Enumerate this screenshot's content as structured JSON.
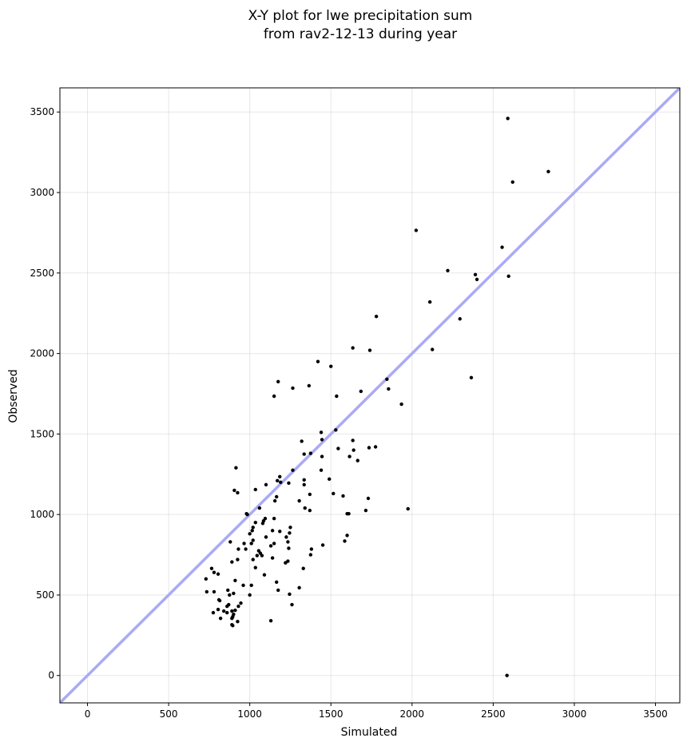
{
  "chart_data": {
    "type": "scatter",
    "title": [
      "X-Y plot for lwe precipitation sum",
      "from rav2-12-13 during year"
    ],
    "xlabel": "Simulated",
    "ylabel": "Observed",
    "xlim": [
      -170,
      3650
    ],
    "ylim": [
      -170,
      3650
    ],
    "xticks": [
      0,
      500,
      1000,
      1500,
      2000,
      2500,
      3000,
      3500
    ],
    "yticks": [
      0,
      500,
      1000,
      1500,
      2000,
      2500,
      3000,
      3500
    ],
    "grid": true,
    "reference_line": {
      "kind": "1:1",
      "color": "#aaaaf5"
    },
    "point_color": "#000000",
    "points": [
      [
        2590,
        3460
      ],
      [
        2840,
        3130
      ],
      [
        2620,
        3065
      ],
      [
        2025,
        2765
      ],
      [
        2555,
        2660
      ],
      [
        2220,
        2515
      ],
      [
        2390,
        2490
      ],
      [
        2400,
        2460
      ],
      [
        2595,
        2480
      ],
      [
        2110,
        2320
      ],
      [
        2295,
        2215
      ],
      [
        1780,
        2230
      ],
      [
        1635,
        2035
      ],
      [
        1740,
        2020
      ],
      [
        2125,
        2025
      ],
      [
        1420,
        1950
      ],
      [
        1500,
        1920
      ],
      [
        2365,
        1850
      ],
      [
        1175,
        1825
      ],
      [
        1845,
        1840
      ],
      [
        1365,
        1800
      ],
      [
        1265,
        1785
      ],
      [
        1855,
        1780
      ],
      [
        1685,
        1765
      ],
      [
        1150,
        1735
      ],
      [
        1535,
        1735
      ],
      [
        1935,
        1685
      ],
      [
        1530,
        1525
      ],
      [
        1440,
        1510
      ],
      [
        1445,
        1465
      ],
      [
        1320,
        1455
      ],
      [
        1635,
        1460
      ],
      [
        1545,
        1410
      ],
      [
        1640,
        1400
      ],
      [
        1735,
        1415
      ],
      [
        1775,
        1420
      ],
      [
        1335,
        1375
      ],
      [
        1375,
        1380
      ],
      [
        1615,
        1360
      ],
      [
        1445,
        1360
      ],
      [
        1665,
        1335
      ],
      [
        915,
        1290
      ],
      [
        1265,
        1275
      ],
      [
        1440,
        1275
      ],
      [
        1185,
        1235
      ],
      [
        1170,
        1210
      ],
      [
        1190,
        1200
      ],
      [
        1335,
        1215
      ],
      [
        1490,
        1220
      ],
      [
        1240,
        1195
      ],
      [
        1335,
        1185
      ],
      [
        1100,
        1185
      ],
      [
        1035,
        1155
      ],
      [
        905,
        1150
      ],
      [
        925,
        1135
      ],
      [
        1515,
        1130
      ],
      [
        1370,
        1125
      ],
      [
        1575,
        1115
      ],
      [
        1165,
        1110
      ],
      [
        1730,
        1100
      ],
      [
        1305,
        1085
      ],
      [
        1155,
        1085
      ],
      [
        1340,
        1040
      ],
      [
        1060,
        1040
      ],
      [
        1370,
        1025
      ],
      [
        1715,
        1025
      ],
      [
        1975,
        1035
      ],
      [
        980,
        1005
      ],
      [
        985,
        1000
      ],
      [
        1600,
        1005
      ],
      [
        1610,
        1005
      ],
      [
        1095,
        975
      ],
      [
        1150,
        975
      ],
      [
        1085,
        960
      ],
      [
        1080,
        945
      ],
      [
        1035,
        950
      ],
      [
        1020,
        920
      ],
      [
        1250,
        920
      ],
      [
        1015,
        900
      ],
      [
        1140,
        900
      ],
      [
        1185,
        895
      ],
      [
        1245,
        885
      ],
      [
        1000,
        880
      ],
      [
        1600,
        870
      ],
      [
        1225,
        860
      ],
      [
        1100,
        860
      ],
      [
        1020,
        840
      ],
      [
        1235,
        830
      ],
      [
        1585,
        835
      ],
      [
        1010,
        820
      ],
      [
        880,
        830
      ],
      [
        965,
        820
      ],
      [
        1150,
        820
      ],
      [
        1130,
        805
      ],
      [
        1450,
        810
      ],
      [
        1240,
        790
      ],
      [
        1380,
        785
      ],
      [
        975,
        785
      ],
      [
        1055,
        775
      ],
      [
        930,
        785
      ],
      [
        1065,
        760
      ],
      [
        1045,
        745
      ],
      [
        1375,
        750
      ],
      [
        1075,
        745
      ],
      [
        1140,
        730
      ],
      [
        1020,
        720
      ],
      [
        925,
        720
      ],
      [
        1235,
        710
      ],
      [
        1220,
        700
      ],
      [
        890,
        705
      ],
      [
        1330,
        665
      ],
      [
        1035,
        670
      ],
      [
        765,
        665
      ],
      [
        1090,
        625
      ],
      [
        780,
        640
      ],
      [
        805,
        630
      ],
      [
        730,
        600
      ],
      [
        910,
        590
      ],
      [
        1165,
        580
      ],
      [
        960,
        560
      ],
      [
        1010,
        560
      ],
      [
        1305,
        545
      ],
      [
        1175,
        530
      ],
      [
        865,
        530
      ],
      [
        780,
        520
      ],
      [
        735,
        520
      ],
      [
        900,
        510
      ],
      [
        1245,
        505
      ],
      [
        1000,
        500
      ],
      [
        875,
        500
      ],
      [
        810,
        470
      ],
      [
        815,
        465
      ],
      [
        945,
        450
      ],
      [
        870,
        440
      ],
      [
        1260,
        440
      ],
      [
        930,
        430
      ],
      [
        860,
        430
      ],
      [
        805,
        410
      ],
      [
        910,
        405
      ],
      [
        890,
        400
      ],
      [
        840,
        400
      ],
      [
        860,
        390
      ],
      [
        775,
        390
      ],
      [
        900,
        380
      ],
      [
        895,
        365
      ],
      [
        890,
        355
      ],
      [
        820,
        355
      ],
      [
        1130,
        340
      ],
      [
        925,
        335
      ],
      [
        890,
        315
      ],
      [
        895,
        310
      ],
      [
        2585,
        0
      ]
    ]
  }
}
